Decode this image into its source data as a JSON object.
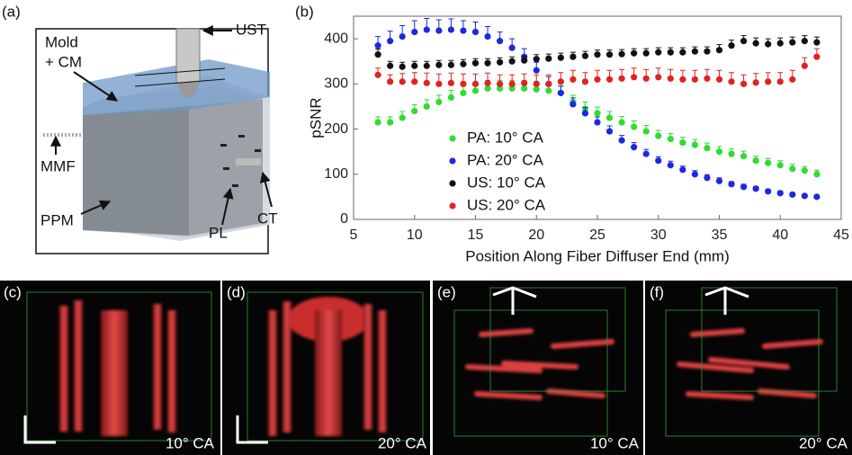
{
  "chart_data": {
    "type": "scatter",
    "ylabel": "pSNR",
    "xlabel": "Position Along Fiber Diffuser End (mm)",
    "xlim": [
      5,
      45
    ],
    "xticks": [
      5,
      10,
      15,
      20,
      25,
      30,
      35,
      40,
      45
    ],
    "ylim": [
      0,
      450
    ],
    "yticks": [
      0,
      100,
      200,
      300,
      400
    ],
    "legend": "lower left",
    "x": [
      7,
      8,
      9,
      10,
      11,
      12,
      13,
      14,
      15,
      16,
      17,
      18,
      19,
      20,
      21,
      22,
      23,
      24,
      25,
      26,
      27,
      28,
      29,
      30,
      31,
      32,
      33,
      34,
      35,
      36,
      37,
      38,
      39,
      40,
      41,
      42,
      43
    ],
    "series": [
      {
        "name": "PA: 10° CA",
        "color": "#2fdc2f",
        "values": [
          215,
          215,
          225,
          240,
          250,
          260,
          270,
          280,
          285,
          290,
          290,
          290,
          290,
          288,
          285,
          280,
          260,
          245,
          235,
          225,
          215,
          205,
          195,
          185,
          178,
          170,
          165,
          158,
          150,
          145,
          140,
          130,
          125,
          120,
          112,
          108,
          100
        ],
        "errors": [
          12,
          12,
          14,
          14,
          15,
          15,
          16,
          16,
          16,
          18,
          18,
          18,
          18,
          18,
          16,
          16,
          15,
          15,
          14,
          14,
          13,
          13,
          13,
          12,
          12,
          12,
          12,
          11,
          11,
          11,
          11,
          10,
          10,
          10,
          10,
          9,
          9
        ]
      },
      {
        "name": "PA: 20° CA",
        "color": "#1e28e0",
        "values": [
          385,
          395,
          405,
          415,
          420,
          418,
          420,
          418,
          415,
          405,
          395,
          380,
          360,
          330,
          300,
          280,
          255,
          235,
          215,
          195,
          175,
          160,
          145,
          130,
          120,
          110,
          100,
          92,
          85,
          78,
          72,
          68,
          62,
          58,
          55,
          52,
          50
        ],
        "errors": [
          20,
          22,
          24,
          25,
          25,
          24,
          24,
          22,
          22,
          22,
          20,
          20,
          18,
          18,
          16,
          15,
          14,
          13,
          12,
          12,
          11,
          10,
          10,
          9,
          9,
          8,
          8,
          7,
          7,
          6,
          6,
          5,
          5,
          5,
          4,
          4,
          4
        ]
      },
      {
        "name": "US: 10° CA",
        "color": "#111111",
        "values": [
          365,
          340,
          338,
          340,
          340,
          342,
          342,
          344,
          346,
          346,
          348,
          350,
          352,
          355,
          356,
          358,
          360,
          362,
          365,
          365,
          366,
          368,
          368,
          370,
          370,
          370,
          372,
          372,
          375,
          385,
          395,
          390,
          388,
          390,
          392,
          395,
          392
        ],
        "errors": [
          12,
          10,
          10,
          10,
          10,
          10,
          10,
          10,
          10,
          10,
          10,
          10,
          10,
          10,
          10,
          10,
          10,
          10,
          10,
          10,
          10,
          10,
          10,
          10,
          10,
          10,
          10,
          10,
          12,
          12,
          12,
          12,
          12,
          12,
          12,
          12,
          12
        ]
      },
      {
        "name": "US: 20° CA",
        "color": "#e02222",
        "values": [
          320,
          305,
          305,
          305,
          302,
          300,
          302,
          300,
          300,
          302,
          300,
          300,
          302,
          300,
          300,
          305,
          310,
          305,
          310,
          310,
          312,
          315,
          312,
          315,
          312,
          310,
          310,
          312,
          310,
          305,
          300,
          303,
          305,
          305,
          310,
          340,
          360
        ],
        "errors": [
          15,
          15,
          18,
          20,
          22,
          22,
          22,
          22,
          22,
          22,
          20,
          20,
          20,
          20,
          20,
          20,
          20,
          20,
          20,
          20,
          20,
          20,
          20,
          20,
          20,
          20,
          20,
          20,
          20,
          20,
          20,
          20,
          20,
          20,
          20,
          18,
          18
        ]
      }
    ]
  },
  "panel_labels": [
    "(a)",
    "(b)",
    "(c)",
    "(d)",
    "(e)",
    "(f)"
  ],
  "schematic": {
    "labels": [
      "UST",
      "Mold",
      "+ CM",
      "MMF",
      "PPM",
      "PL",
      "CT"
    ]
  },
  "volume_captions": [
    "10° CA",
    "20° CA",
    "10° CA",
    "20° CA"
  ]
}
